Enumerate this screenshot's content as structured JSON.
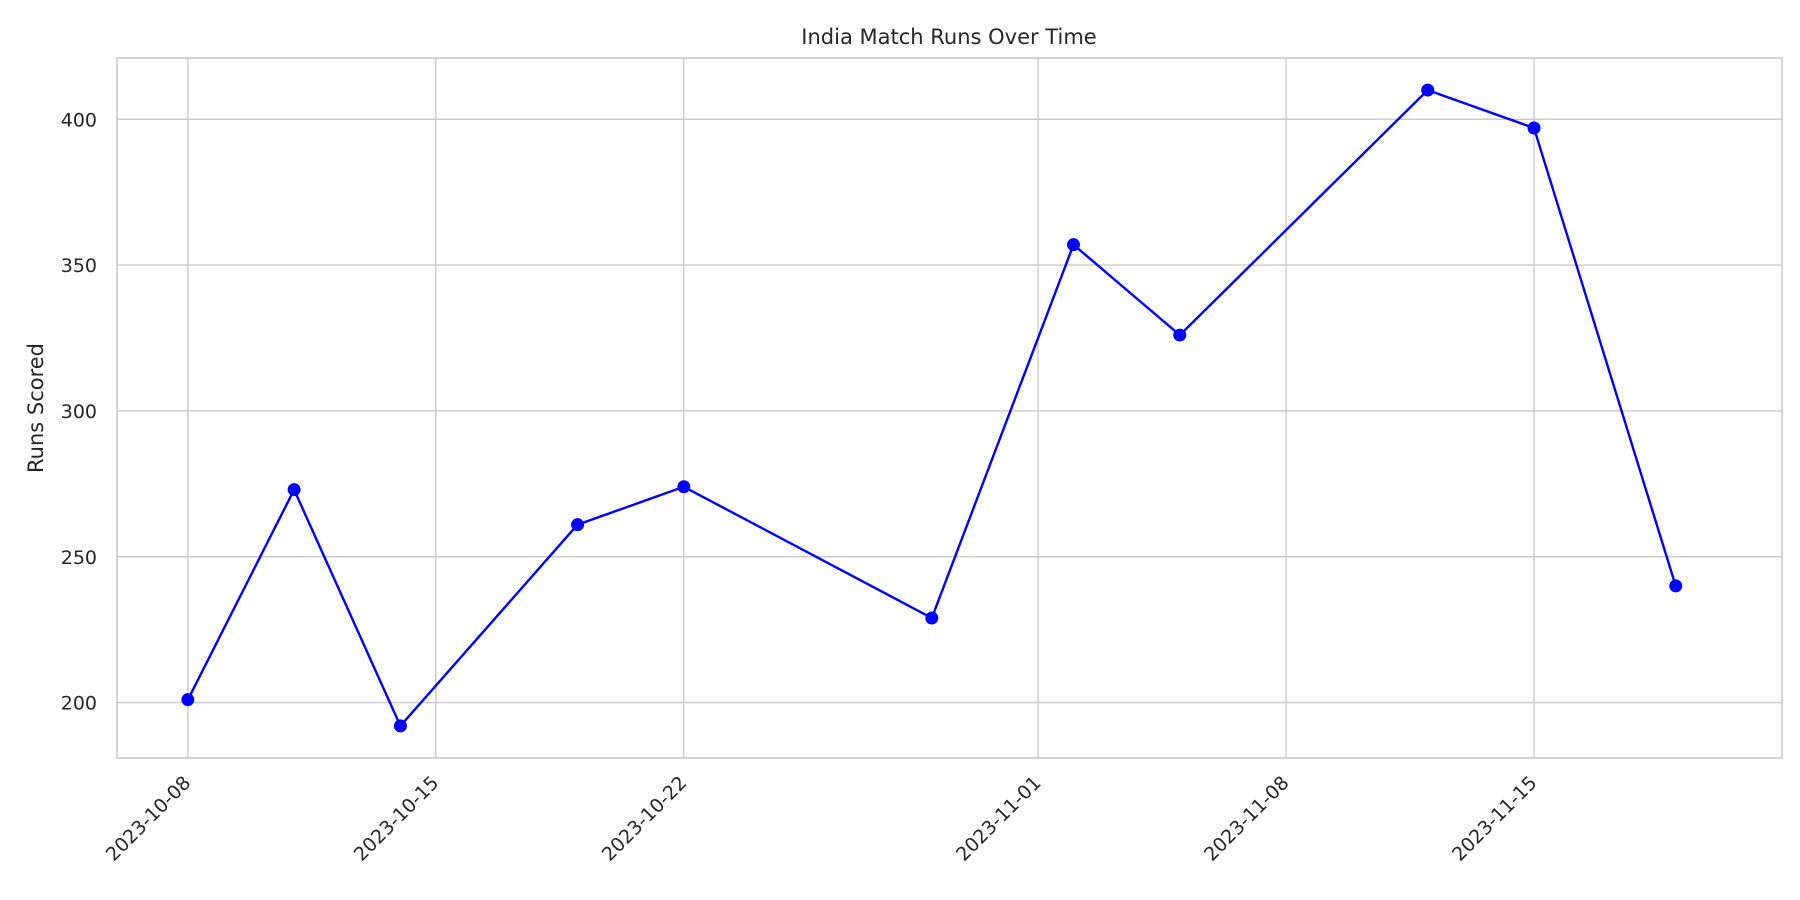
{
  "chart_data": {
    "type": "line",
    "title": "India Match Runs Over Time",
    "xlabel": "",
    "ylabel": "Runs Scored",
    "x_ticks": [
      "2023-10-08",
      "2023-10-15",
      "2023-10-22",
      "2023-11-01",
      "2023-11-08",
      "2023-11-15"
    ],
    "y_ticks": [
      200,
      250,
      300,
      350,
      400
    ],
    "xlim": [
      "2023-10-06",
      "2023-11-22"
    ],
    "ylim": [
      181,
      421
    ],
    "grid": true,
    "series": [
      {
        "color": "#0000ff",
        "marker": "circle",
        "points": [
          {
            "x": "2023-10-08",
            "y": 201
          },
          {
            "x": "2023-10-11",
            "y": 273
          },
          {
            "x": "2023-10-14",
            "y": 192
          },
          {
            "x": "2023-10-19",
            "y": 261
          },
          {
            "x": "2023-10-22",
            "y": 274
          },
          {
            "x": "2023-10-29",
            "y": 229
          },
          {
            "x": "2023-11-02",
            "y": 357
          },
          {
            "x": "2023-11-05",
            "y": 326
          },
          {
            "x": "2023-11-12",
            "y": 410
          },
          {
            "x": "2023-11-15",
            "y": 397
          },
          {
            "x": "2023-11-19",
            "y": 240
          }
        ]
      }
    ]
  }
}
